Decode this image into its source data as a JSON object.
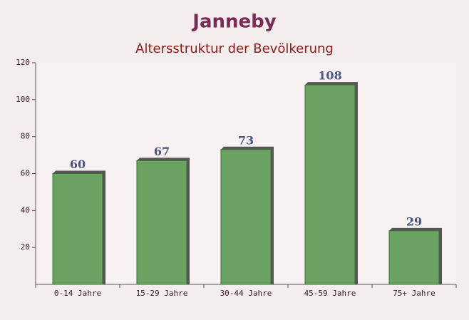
{
  "chart_data": {
    "type": "bar",
    "title": "Janneby",
    "subtitle": "Altersstruktur der Bevölkerung",
    "categories": [
      "0-14 Jahre",
      "15-29 Jahre",
      "30-44 Jahre",
      "45-59 Jahre",
      "75+ Jahre"
    ],
    "values": [
      60,
      67,
      73,
      108,
      29
    ],
    "color": "#6aa262",
    "ylim": [
      0,
      120
    ],
    "yticks": [
      20,
      40,
      60,
      80,
      100,
      120
    ],
    "grid": false
  }
}
